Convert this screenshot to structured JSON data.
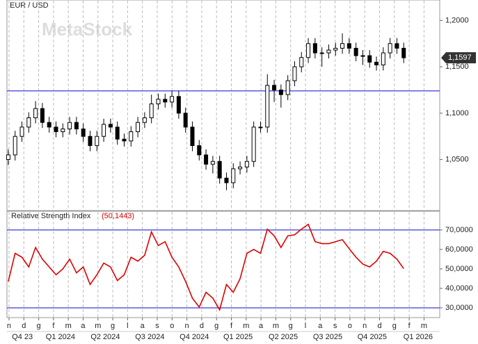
{
  "chart_data": [
    {
      "type": "candlestick",
      "title": "EUR / USD",
      "watermark": "MetaStock",
      "x": [
        -0.05,
        0.41,
        0.87,
        1.33,
        1.79,
        2.25,
        2.71,
        3.17,
        3.63,
        4.09,
        4.55,
        5.01,
        5.47,
        5.93,
        6.39,
        6.85,
        7.31,
        7.77,
        8.23,
        8.69,
        9.15,
        9.61,
        10.07,
        10.53,
        10.99,
        11.45,
        11.91,
        12.37,
        12.83,
        13.29,
        13.75,
        14.21,
        14.67,
        15.13,
        15.59,
        16.05,
        16.51,
        16.97,
        17.43,
        17.89,
        18.35,
        18.81,
        19.27,
        19.73,
        20.19,
        20.65,
        21.11,
        21.57,
        22.03,
        22.49,
        22.95,
        23.41,
        23.87,
        24.33,
        24.79,
        25.25,
        25.71,
        26.17,
        26.63
      ],
      "open": [
        1.05,
        1.055,
        1.075,
        1.085,
        1.095,
        1.105,
        1.09,
        1.085,
        1.08,
        1.083,
        1.09,
        1.083,
        1.075,
        1.065,
        1.075,
        1.088,
        1.085,
        1.072,
        1.07,
        1.08,
        1.09,
        1.095,
        1.11,
        1.115,
        1.112,
        1.118,
        1.1,
        1.085,
        1.065,
        1.055,
        1.045,
        1.048,
        1.03,
        1.025,
        1.04,
        1.042,
        1.048,
        1.085,
        1.085,
        1.13,
        1.125,
        1.12,
        1.135,
        1.15,
        1.16,
        1.175,
        1.165,
        1.165,
        1.168,
        1.17,
        1.175,
        1.17,
        1.162,
        1.162,
        1.155,
        1.152,
        1.165,
        1.175,
        1.17
      ],
      "high": [
        1.061,
        1.081,
        1.091,
        1.101,
        1.113,
        1.111,
        1.096,
        1.091,
        1.089,
        1.096,
        1.096,
        1.089,
        1.081,
        1.081,
        1.094,
        1.094,
        1.091,
        1.078,
        1.086,
        1.096,
        1.101,
        1.12,
        1.121,
        1.121,
        1.124,
        1.124,
        1.106,
        1.091,
        1.071,
        1.061,
        1.054,
        1.054,
        1.036,
        1.046,
        1.048,
        1.054,
        1.091,
        1.091,
        1.142,
        1.136,
        1.131,
        1.141,
        1.156,
        1.166,
        1.181,
        1.181,
        1.171,
        1.174,
        1.176,
        1.186,
        1.181,
        1.176,
        1.168,
        1.168,
        1.161,
        1.171,
        1.181,
        1.181,
        1.176
      ],
      "low": [
        1.044,
        1.049,
        1.069,
        1.079,
        1.089,
        1.084,
        1.079,
        1.074,
        1.074,
        1.077,
        1.077,
        1.069,
        1.059,
        1.059,
        1.069,
        1.079,
        1.066,
        1.064,
        1.064,
        1.074,
        1.084,
        1.089,
        1.104,
        1.106,
        1.106,
        1.094,
        1.079,
        1.059,
        1.049,
        1.039,
        1.035,
        1.024,
        1.017,
        1.019,
        1.034,
        1.036,
        1.042,
        1.079,
        1.079,
        1.112,
        1.106,
        1.114,
        1.129,
        1.144,
        1.154,
        1.159,
        1.15,
        1.159,
        1.162,
        1.164,
        1.164,
        1.156,
        1.152,
        1.149,
        1.146,
        1.146,
        1.159,
        1.164,
        1.154
      ],
      "close": [
        1.055,
        1.075,
        1.085,
        1.095,
        1.105,
        1.09,
        1.085,
        1.08,
        1.083,
        1.09,
        1.083,
        1.075,
        1.065,
        1.075,
        1.088,
        1.085,
        1.072,
        1.07,
        1.08,
        1.09,
        1.095,
        1.11,
        1.115,
        1.112,
        1.118,
        1.1,
        1.085,
        1.065,
        1.055,
        1.045,
        1.048,
        1.03,
        1.025,
        1.04,
        1.042,
        1.048,
        1.085,
        1.085,
        1.13,
        1.125,
        1.12,
        1.135,
        1.15,
        1.16,
        1.175,
        1.165,
        1.165,
        1.168,
        1.17,
        1.175,
        1.17,
        1.162,
        1.162,
        1.155,
        1.152,
        1.165,
        1.175,
        1.17,
        1.1597
      ],
      "last_label": "1,1597",
      "up_color": "#ffffff",
      "down_color": "#000000",
      "hline_color": "#5a5ae0",
      "hlines": [
        1.124
      ],
      "xlim": [
        -0.14,
        29.06
      ],
      "ylim": [
        0.995,
        1.222
      ],
      "yticks": [
        {
          "value": 1.05,
          "label": "1,0500"
        },
        {
          "value": 1.1,
          "label": "1,1000"
        },
        {
          "value": 1.15,
          "label": "1,1500"
        },
        {
          "value": 1.2,
          "label": "1,2000"
        }
      ],
      "grid": true
    },
    {
      "type": "line",
      "title": "Relative Strength Index",
      "last_label": "(50,1443)",
      "color": "#dd0000",
      "hline_color": "#5a5ae0",
      "x": [
        -0.05,
        0.41,
        0.87,
        1.33,
        1.79,
        2.25,
        2.71,
        3.17,
        3.63,
        4.09,
        4.55,
        5.01,
        5.47,
        5.93,
        6.39,
        6.85,
        7.31,
        7.77,
        8.23,
        8.69,
        9.15,
        9.61,
        10.07,
        10.53,
        10.99,
        11.45,
        11.91,
        12.37,
        12.83,
        13.29,
        13.75,
        14.21,
        14.67,
        15.13,
        15.59,
        16.05,
        16.51,
        16.97,
        17.43,
        17.89,
        18.35,
        18.81,
        19.27,
        19.73,
        20.19,
        20.65,
        21.11,
        21.57,
        22.03,
        22.49,
        22.95,
        23.41,
        23.87,
        24.33,
        24.79,
        25.25,
        25.71,
        26.17,
        26.63
      ],
      "values": [
        43.6,
        58,
        56,
        51,
        61,
        55,
        51,
        47,
        50,
        55,
        48,
        51,
        42,
        47,
        53,
        51,
        44,
        47,
        56,
        54,
        57,
        69,
        62,
        64,
        56,
        51,
        43.6,
        35,
        30.4,
        38,
        35,
        29,
        42,
        38,
        45,
        58,
        60,
        58,
        70.4,
        67,
        61,
        67,
        67.5,
        70.4,
        72.9,
        64,
        63,
        63,
        64,
        65,
        60.4,
        56,
        52.5,
        51,
        54,
        59,
        58,
        55,
        50.1443
      ],
      "hlines": [
        70,
        30
      ],
      "xlim": [
        -0.14,
        29.06
      ],
      "ylim": [
        25,
        79.6
      ],
      "yticks": [
        {
          "value": 30,
          "label": "30,0000"
        },
        {
          "value": 40,
          "label": "40,0000"
        },
        {
          "value": 50,
          "label": "50,0000"
        },
        {
          "value": 60,
          "label": "60,0000"
        },
        {
          "value": 70,
          "label": "70,0000"
        }
      ],
      "xticks": [
        {
          "value": 0,
          "label": "n"
        },
        {
          "value": 1,
          "label": "d"
        },
        {
          "value": 2,
          "label": "g"
        },
        {
          "value": 3,
          "label": "f"
        },
        {
          "value": 4,
          "label": "m"
        },
        {
          "value": 5,
          "label": "a"
        },
        {
          "value": 6,
          "label": "m"
        },
        {
          "value": 7,
          "label": "g"
        },
        {
          "value": 8,
          "label": "l"
        },
        {
          "value": 9,
          "label": "a"
        },
        {
          "value": 10,
          "label": "s"
        },
        {
          "value": 11,
          "label": "o"
        },
        {
          "value": 12,
          "label": "n"
        },
        {
          "value": 13,
          "label": "d"
        },
        {
          "value": 14,
          "label": "g"
        },
        {
          "value": 15,
          "label": "f"
        },
        {
          "value": 16,
          "label": "m"
        },
        {
          "value": 17,
          "label": "a"
        },
        {
          "value": 18,
          "label": "m"
        },
        {
          "value": 19,
          "label": "g"
        },
        {
          "value": 20,
          "label": "l"
        },
        {
          "value": 21,
          "label": "a"
        },
        {
          "value": 22,
          "label": "s"
        },
        {
          "value": 23,
          "label": "o"
        },
        {
          "value": 24,
          "label": "n"
        },
        {
          "value": 25,
          "label": "d"
        },
        {
          "value": 26,
          "label": "g"
        },
        {
          "value": 27,
          "label": "f"
        },
        {
          "value": 28,
          "label": "m"
        }
      ],
      "period_labels": [
        {
          "value": 0.9,
          "label": "Q4 23"
        },
        {
          "value": 3.47,
          "label": "Q1 2024"
        },
        {
          "value": 6.5,
          "label": "Q2 2024"
        },
        {
          "value": 9.5,
          "label": "Q3 2024"
        },
        {
          "value": 12.5,
          "label": "Q4 2024"
        },
        {
          "value": 15.45,
          "label": "Q1 2025"
        },
        {
          "value": 18.5,
          "label": "Q2 2025"
        },
        {
          "value": 21.5,
          "label": "Q3 2025"
        },
        {
          "value": 24.5,
          "label": "Q4 2025"
        },
        {
          "value": 27.6,
          "label": "Q1 2026"
        }
      ],
      "grid": true
    }
  ]
}
